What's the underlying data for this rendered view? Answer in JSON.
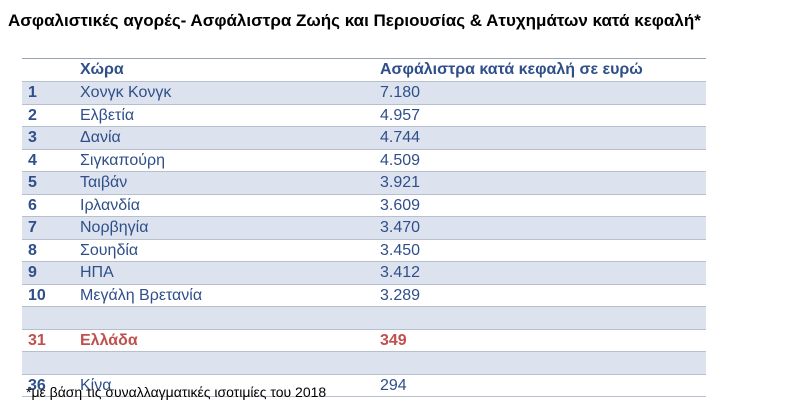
{
  "title": "Ασφαλιστικές αγορές- Ασφάλιστρα Ζωής και Περιουσίας & Ατυχημάτων κατά κεφαλή*",
  "table": {
    "headers": {
      "country": "Χώρα",
      "value": "Ασφάλιστρα κατά κεφαλή σε ευρώ"
    },
    "rows": [
      {
        "rank": "1",
        "country": "Χονγκ Κονγκ",
        "value": "7.180"
      },
      {
        "rank": "2",
        "country": "Ελβετία",
        "value": "4.957"
      },
      {
        "rank": "3",
        "country": "Δανία",
        "value": "4.744"
      },
      {
        "rank": "4",
        "country": "Σιγκαπούρη",
        "value": "4.509"
      },
      {
        "rank": "5",
        "country": "Ταιβάν",
        "value": "3.921"
      },
      {
        "rank": "6",
        "country": "Ιρλανδία",
        "value": "3.609"
      },
      {
        "rank": "7",
        "country": "Νορβηγία",
        "value": "3.470"
      },
      {
        "rank": "8",
        "country": "Σουηδία",
        "value": "3.450"
      },
      {
        "rank": "9",
        "country": "ΗΠΑ",
        "value": "3.412"
      },
      {
        "rank": "10",
        "country": "Μεγάλη Βρετανία",
        "value": "3.289"
      }
    ],
    "greece": {
      "rank": "31",
      "country": "Ελλάδα",
      "value": "349"
    },
    "china": {
      "rank": "36",
      "country": "Κίνα",
      "value": "294"
    }
  },
  "footnote": "*με βάση τις συναλλαγματικές ισοτιμίες του 2018",
  "colors": {
    "text": "#2f4f8a",
    "highlight": "#c0504d",
    "shade": "#dce3ef"
  }
}
